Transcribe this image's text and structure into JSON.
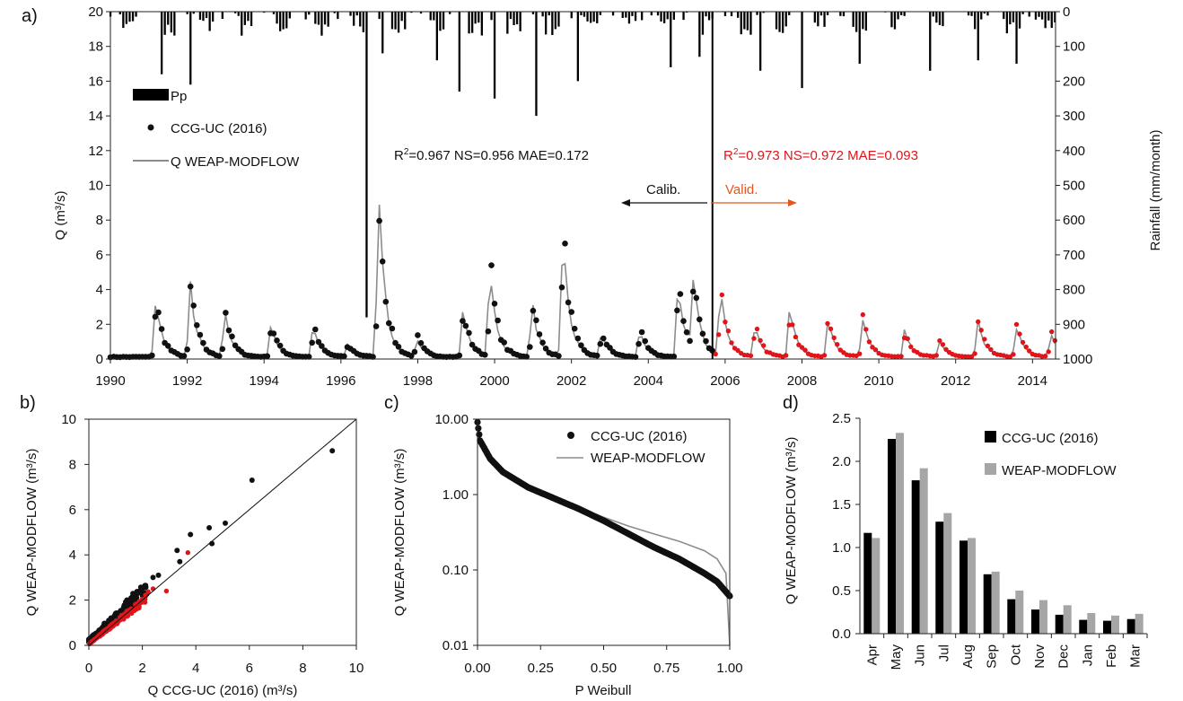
{
  "panel_labels": {
    "a": "a)",
    "b": "b)",
    "c": "c)",
    "d": "d)"
  },
  "colors": {
    "observed": "#111111",
    "simulated": "#8c8c8c",
    "validation": "#e0151a",
    "arrow_valid": "#e8541e"
  },
  "chart_data": [
    {
      "id": "a",
      "type": "line",
      "title": "",
      "ylabel": "Q  (m³/s)",
      "y2label": "Rainfall (mm/month)",
      "ylim": [
        0,
        20
      ],
      "y2lim": [
        1000,
        0
      ],
      "xlim": [
        1990,
        2014.6
      ],
      "x_ticks": [
        "1990",
        "1992",
        "1994",
        "1996",
        "1998",
        "2000",
        "2002",
        "2004",
        "2006",
        "2008",
        "2010",
        "2012",
        "2014"
      ],
      "y_ticks": [
        "0",
        "2",
        "4",
        "6",
        "8",
        "10",
        "12",
        "14",
        "16",
        "18",
        "20"
      ],
      "y2_ticks": [
        "0",
        "100",
        "200",
        "300",
        "400",
        "500",
        "600",
        "700",
        "800",
        "900",
        "1000"
      ],
      "split_year": 2005.67,
      "legend": {
        "position": "top-left",
        "rain": "Pp",
        "observed": "CCG-UC (2016)",
        "simulated": "Q WEAP-MODFLOW"
      },
      "stats_calibration": {
        "r2_prefix": "R",
        "r2_sup": "2",
        "text": "=0.967 NS=0.956 MAE=0.172"
      },
      "stats_validation": {
        "r2_prefix": "R",
        "r2_sup": "2",
        "text": "=0.973 NS=0.972 MAE=0.093"
      },
      "calib_label": "Calib.",
      "valid_label": "Valid.",
      "peaks": [
        {
          "year": 1991.2,
          "q": 3.3
        },
        {
          "year": 1992.1,
          "q": 4.2
        },
        {
          "year": 1993.0,
          "q": 2.7
        },
        {
          "year": 1994.2,
          "q": 2.0
        },
        {
          "year": 1995.3,
          "q": 1.8
        },
        {
          "year": 1996.2,
          "q": 0.8
        },
        {
          "year": 1997.0,
          "q": 9.1
        },
        {
          "year": 1998.0,
          "q": 1.2
        },
        {
          "year": 1999.2,
          "q": 2.7
        },
        {
          "year": 1999.9,
          "q": 5.2
        },
        {
          "year": 2001.0,
          "q": 3.2
        },
        {
          "year": 2001.8,
          "q": 7.1
        },
        {
          "year": 2002.8,
          "q": 1.5
        },
        {
          "year": 2003.8,
          "q": 1.6
        },
        {
          "year": 2004.8,
          "q": 4.5
        },
        {
          "year": 2005.2,
          "q": 4.1
        },
        {
          "year": 2005.9,
          "q": 3.9
        },
        {
          "year": 2006.8,
          "q": 1.8
        },
        {
          "year": 2007.7,
          "q": 2.9
        },
        {
          "year": 2008.7,
          "q": 2.3
        },
        {
          "year": 2009.6,
          "q": 2.4
        },
        {
          "year": 2010.7,
          "q": 1.6
        },
        {
          "year": 2011.6,
          "q": 1.0
        },
        {
          "year": 2012.6,
          "q": 2.2
        },
        {
          "year": 2013.6,
          "q": 1.9
        },
        {
          "year": 2014.5,
          "q": 1.5
        }
      ],
      "rain_peaks_mm": [
        {
          "year": 1991.3,
          "mm": 180
        },
        {
          "year": 1992.1,
          "mm": 210
        },
        {
          "year": 1996.7,
          "mm": 880
        },
        {
          "year": 1997.1,
          "mm": 120
        },
        {
          "year": 1998.5,
          "mm": 140
        },
        {
          "year": 1999.1,
          "mm": 230
        },
        {
          "year": 2000.0,
          "mm": 250
        },
        {
          "year": 2001.1,
          "mm": 300
        },
        {
          "year": 2002.2,
          "mm": 200
        },
        {
          "year": 2004.6,
          "mm": 160
        },
        {
          "year": 2005.3,
          "mm": 130
        },
        {
          "year": 2006.9,
          "mm": 170
        },
        {
          "year": 2008.0,
          "mm": 220
        },
        {
          "year": 2009.5,
          "mm": 150
        },
        {
          "year": 2011.3,
          "mm": 170
        },
        {
          "year": 2012.6,
          "mm": 140
        },
        {
          "year": 2013.6,
          "mm": 150
        }
      ]
    },
    {
      "id": "b",
      "type": "scatter",
      "xlabel": "Q CCG-UC (2016)  (m³/s)",
      "ylabel": "Q WEAP-MODFLOW (m³/s)",
      "xlim": [
        0,
        10
      ],
      "ylim": [
        0,
        10
      ],
      "x_ticks": [
        "0",
        "2",
        "4",
        "6",
        "8",
        "10"
      ],
      "y_ticks": [
        "0",
        "2",
        "4",
        "6",
        "8",
        "10"
      ],
      "one_to_one_line": true,
      "outliers": [
        [
          9.1,
          8.6
        ],
        [
          6.1,
          7.3
        ],
        [
          5.1,
          5.4
        ],
        [
          4.5,
          5.2
        ],
        [
          4.6,
          4.5
        ],
        [
          3.8,
          4.9
        ],
        [
          3.3,
          4.2
        ],
        [
          3.4,
          3.7
        ],
        [
          2.6,
          3.1
        ],
        [
          2.4,
          3.0
        ]
      ]
    },
    {
      "id": "c",
      "type": "line",
      "xlabel": "P Weibull",
      "ylabel": "Q WEAP-MODFLOW (m³/s)",
      "xlim": [
        0,
        1
      ],
      "ylim_log": [
        0.01,
        10
      ],
      "x_ticks": [
        "0.00",
        "0.25",
        "0.50",
        "0.75",
        "1.00"
      ],
      "y_ticks": [
        "0.01",
        "0.10",
        "1.00",
        "10.00"
      ],
      "legend": {
        "position": "top-right",
        "observed": "CCG-UC (2016)",
        "simulated": "WEAP-MODFLOW"
      },
      "observed_curve": [
        [
          0.0,
          9.1
        ],
        [
          0.01,
          5.2
        ],
        [
          0.05,
          3.0
        ],
        [
          0.1,
          2.0
        ],
        [
          0.2,
          1.25
        ],
        [
          0.3,
          0.9
        ],
        [
          0.4,
          0.65
        ],
        [
          0.5,
          0.45
        ],
        [
          0.6,
          0.3
        ],
        [
          0.7,
          0.2
        ],
        [
          0.8,
          0.14
        ],
        [
          0.9,
          0.09
        ],
        [
          0.95,
          0.07
        ],
        [
          1.0,
          0.045
        ]
      ],
      "simulated_curve": [
        [
          0.0,
          8.6
        ],
        [
          0.01,
          5.5
        ],
        [
          0.05,
          3.0
        ],
        [
          0.1,
          2.0
        ],
        [
          0.2,
          1.25
        ],
        [
          0.3,
          0.9
        ],
        [
          0.4,
          0.68
        ],
        [
          0.5,
          0.5
        ],
        [
          0.6,
          0.38
        ],
        [
          0.7,
          0.3
        ],
        [
          0.8,
          0.24
        ],
        [
          0.9,
          0.18
        ],
        [
          0.95,
          0.14
        ],
        [
          0.985,
          0.09
        ],
        [
          1.0,
          0.01
        ]
      ]
    },
    {
      "id": "d",
      "type": "bar",
      "ylabel": "Q WEAP-MODFLOW (m³/s)",
      "ylim": [
        0,
        2.5
      ],
      "y_ticks": [
        "0.0",
        "0.5",
        "1.0",
        "1.5",
        "2.0",
        "2.5"
      ],
      "categories": [
        "Apr",
        "May",
        "Jun",
        "Jul",
        "Aug",
        "Sep",
        "Oct",
        "Nov",
        "Dec",
        "Jan",
        "Feb",
        "Mar"
      ],
      "legend": {
        "position": "top-right"
      },
      "series": [
        {
          "name": "CCG-UC (2016)",
          "color": "#000000",
          "values": [
            1.17,
            2.26,
            1.78,
            1.3,
            1.08,
            0.69,
            0.4,
            0.28,
            0.22,
            0.16,
            0.15,
            0.17
          ]
        },
        {
          "name": "WEAP-MODFLOW",
          "color": "#a6a6a6",
          "values": [
            1.11,
            2.33,
            1.92,
            1.4,
            1.11,
            0.72,
            0.5,
            0.39,
            0.33,
            0.24,
            0.21,
            0.23
          ]
        }
      ]
    }
  ]
}
